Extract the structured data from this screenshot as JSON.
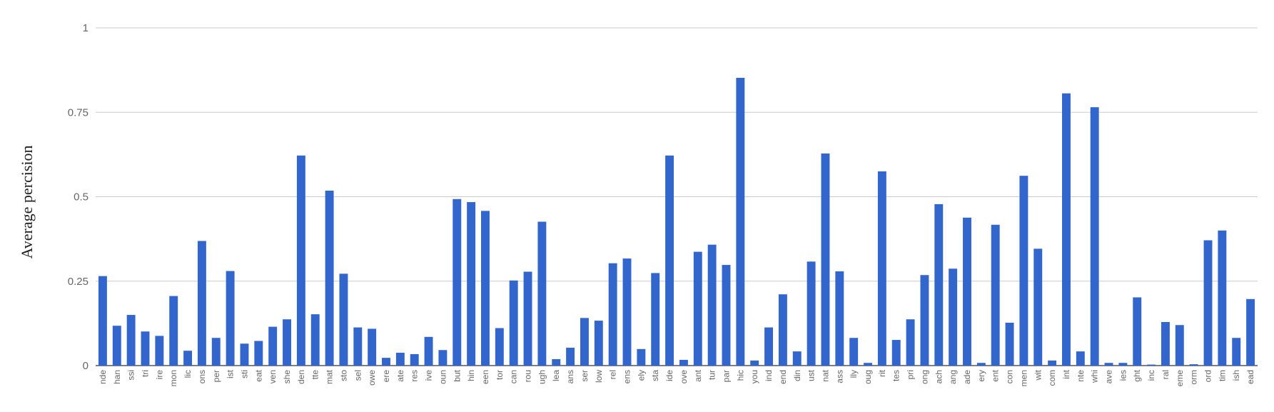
{
  "chart_data": {
    "type": "bar",
    "ylabel": "Average percision",
    "xlabel": "",
    "ylim": [
      0,
      1
    ],
    "yticks": [
      0,
      0.25,
      0.5,
      0.75,
      1
    ],
    "ytick_labels": [
      "0",
      "0.25",
      "0.5",
      "0.75",
      "1"
    ],
    "grid": true,
    "bar_color": "#3366cc",
    "categories": [
      "nde",
      "han",
      "ssi",
      "tri",
      "ire",
      "mon",
      "lic",
      "ons",
      "per",
      "ist",
      "sti",
      "eat",
      "ven",
      "she",
      "den",
      "tte",
      "mat",
      "sto",
      "sel",
      "owe",
      "ere",
      "ate",
      "res",
      "ive",
      "oun",
      "but",
      "hin",
      "een",
      "tor",
      "can",
      "rou",
      "ugh",
      "lea",
      "ans",
      "ser",
      "low",
      "rel",
      "ens",
      "ely",
      "sta",
      "ide",
      "ove",
      "ant",
      "tur",
      "par",
      "hic",
      "you",
      "ind",
      "end",
      "din",
      "ust",
      "nat",
      "ass",
      "lly",
      "oug",
      "rit",
      "tes",
      "pri",
      "ong",
      "ach",
      "ang",
      "ade",
      "ery",
      "ent",
      "con",
      "men",
      "wit",
      "com",
      "int",
      "nte",
      "whi",
      "ave",
      "ies",
      "ght",
      "inc",
      "ral",
      "eme",
      "orm",
      "ord",
      "tim",
      "ish",
      "ead"
    ],
    "values": [
      0.265,
      0.118,
      0.15,
      0.101,
      0.088,
      0.206,
      0.044,
      0.369,
      0.082,
      0.28,
      0.065,
      0.073,
      0.115,
      0.137,
      0.622,
      0.152,
      0.518,
      0.272,
      0.113,
      0.109,
      0.023,
      0.038,
      0.034,
      0.085,
      0.046,
      0.493,
      0.484,
      0.458,
      0.111,
      0.252,
      0.278,
      0.426,
      0.019,
      0.053,
      0.141,
      0.133,
      0.303,
      0.317,
      0.049,
      0.274,
      0.622,
      0.017,
      0.337,
      0.358,
      0.298,
      0.852,
      0.015,
      0.113,
      0.211,
      0.042,
      0.308,
      0.628,
      0.279,
      0.082,
      0.008,
      0.575,
      0.076,
      0.137,
      0.268,
      0.478,
      0.287,
      0.438,
      0.008,
      0.417,
      0.127,
      0.562,
      0.346,
      0.015,
      0.806,
      0.042,
      0.765,
      0.008,
      0.008,
      0.202,
      0.003,
      0.129,
      0.12,
      0.004,
      0.371,
      0.4,
      0.082,
      0.197
    ]
  }
}
